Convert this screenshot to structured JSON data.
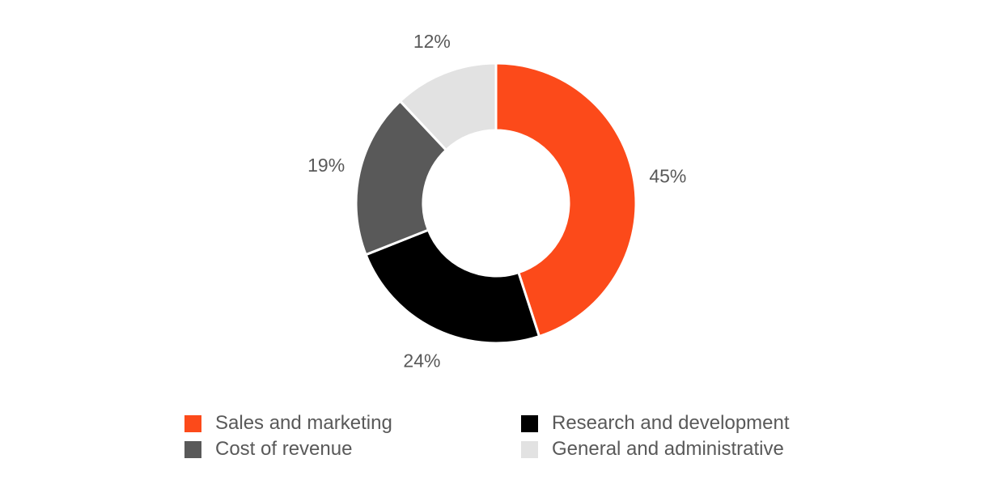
{
  "chart_data": {
    "type": "pie",
    "style": "donut",
    "title": "",
    "unit": "%",
    "slices": [
      {
        "label": "Sales and marketing",
        "value": 45,
        "display": "45%",
        "color": "#FC4A1A"
      },
      {
        "label": "Research and development",
        "value": 24,
        "display": "24%",
        "color": "#000000"
      },
      {
        "label": "Cost of revenue",
        "value": 19,
        "display": "19%",
        "color": "#595959"
      },
      {
        "label": "General and administrative",
        "value": 12,
        "display": "12%",
        "color": "#E2E2E2"
      }
    ],
    "legend": {
      "position": "bottom",
      "entries": [
        {
          "label": "Sales and marketing",
          "color": "#FC4A1A"
        },
        {
          "label": "Research and development",
          "color": "#000000"
        },
        {
          "label": "Cost of revenue",
          "color": "#595959"
        },
        {
          "label": "General and administrative",
          "color": "#E2E2E2"
        }
      ]
    }
  }
}
